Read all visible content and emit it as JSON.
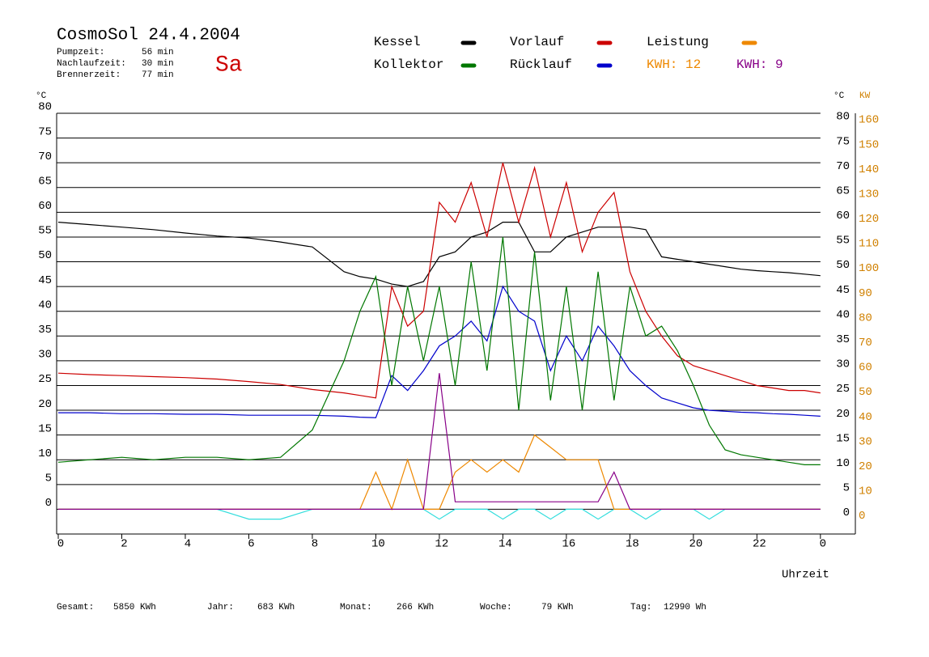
{
  "chart_data": {
    "type": "line",
    "title": "CosmoSol 24.4.2004",
    "weekday": "Sa",
    "info": [
      {
        "label": "Pumpzeit:",
        "value": "56 min"
      },
      {
        "label": "Nachlaufzeit:",
        "value": "30 min"
      },
      {
        "label": "Brennerzeit:",
        "value": "77 min"
      }
    ],
    "xlabel": "Uhrzeit",
    "ylabel": "°C",
    "y2label": "KW",
    "x": [
      0,
      1,
      2,
      3,
      4,
      5,
      6,
      7,
      8,
      9,
      9.5,
      10,
      10.5,
      11,
      11.5,
      12,
      12.5,
      13,
      13.5,
      14,
      14.5,
      15,
      15.5,
      16,
      16.5,
      17,
      17.5,
      18,
      18.5,
      19,
      19.5,
      20,
      20.5,
      21,
      21.5,
      22,
      22.5,
      23,
      23.5,
      24
    ],
    "xlim": [
      0,
      25.1
    ],
    "xticks": [
      0,
      2,
      4,
      6,
      8,
      10,
      12,
      14,
      16,
      18,
      20,
      22,
      {
        "value": 24,
        "label": "0"
      }
    ],
    "ylim": [
      -5,
      80
    ],
    "yticks": [
      0,
      5,
      10,
      15,
      20,
      25,
      30,
      35,
      40,
      45,
      50,
      55,
      60,
      65,
      70,
      75,
      80
    ],
    "y2lim": [
      -10,
      160
    ],
    "y2ticks": [
      0,
      10,
      20,
      30,
      40,
      50,
      60,
      70,
      80,
      90,
      100,
      110,
      120,
      130,
      140,
      150,
      160
    ],
    "grid": true,
    "series": [
      {
        "name": "Kessel",
        "color": "#000000",
        "values": [
          58,
          57.5,
          57,
          56.5,
          55.8,
          55.2,
          54.8,
          54,
          53,
          48,
          47,
          46.5,
          45.5,
          45,
          46,
          51,
          52,
          55,
          56,
          58,
          58,
          52,
          52,
          55,
          56,
          57,
          57,
          57,
          56.5,
          51,
          50.5,
          50,
          49.5,
          49,
          48.5,
          48.2,
          48,
          47.8,
          47.5,
          47.2
        ]
      },
      {
        "name": "Kollektor",
        "color": "#007700",
        "values": [
          9.5,
          10,
          10.5,
          10,
          10.5,
          10.5,
          10,
          10.5,
          16,
          30,
          40,
          47,
          25,
          45,
          30,
          45,
          25,
          50,
          28,
          55,
          20,
          52,
          22,
          45,
          20,
          48,
          22,
          45,
          35,
          37,
          32,
          25,
          17,
          12,
          11,
          10.5,
          10,
          9.5,
          9,
          9
        ]
      },
      {
        "name": "Vorlauf",
        "color": "#cc0000",
        "values": [
          27.5,
          27.2,
          27,
          26.8,
          26.6,
          26.3,
          25.8,
          25.2,
          24.2,
          23.5,
          23,
          22.5,
          45,
          37,
          40,
          62,
          58,
          66,
          55,
          70,
          58,
          69,
          55,
          66,
          52,
          60,
          64,
          48,
          40,
          35,
          31,
          29,
          28,
          27,
          26,
          25,
          24.5,
          24,
          24,
          23.5
        ]
      },
      {
        "name": "Rücklauf",
        "color": "#0000cc",
        "values": [
          19.5,
          19.5,
          19.3,
          19.3,
          19.2,
          19.2,
          19,
          19,
          19,
          18.8,
          18.6,
          18.5,
          27,
          24,
          28,
          33,
          35,
          38,
          34,
          45,
          40,
          38,
          28,
          35,
          30,
          37,
          33,
          28,
          25,
          22.5,
          21.5,
          20.5,
          20,
          19.8,
          19.6,
          19.5,
          19.3,
          19.2,
          19,
          18.8
        ]
      },
      {
        "name": "Leistung",
        "color": "#ee8800",
        "axis": "y2",
        "total_label": "KWH: 12",
        "values": [
          0,
          0,
          0,
          0,
          0,
          0,
          0,
          0,
          0,
          0,
          0,
          15,
          0,
          20,
          0,
          0,
          15,
          20,
          15,
          20,
          15,
          30,
          25,
          20,
          20,
          20,
          0,
          0,
          0,
          0,
          0,
          0,
          0,
          0,
          0,
          0,
          0,
          0,
          0,
          0
        ]
      },
      {
        "color": "#880088",
        "axis": "y2",
        "total_label": "KWH: 9",
        "values": [
          0,
          0,
          0,
          0,
          0,
          0,
          0,
          0,
          0,
          0,
          0,
          0,
          0,
          0,
          0,
          55,
          3,
          3,
          3,
          3,
          3,
          3,
          3,
          3,
          3,
          3,
          15,
          0,
          0,
          0,
          0,
          0,
          0,
          0,
          0,
          0,
          0,
          0,
          0,
          0
        ]
      },
      {
        "color": "#33dddd",
        "values": [
          0,
          0,
          0,
          0,
          0,
          0,
          -2,
          -2,
          0,
          0,
          0,
          0,
          0,
          0,
          0,
          -2,
          0,
          0,
          0,
          -2,
          0,
          0,
          -2,
          0,
          0,
          -2,
          0,
          0,
          -2,
          0,
          0,
          0,
          -2,
          0,
          0,
          0,
          0,
          0,
          0,
          0
        ]
      }
    ],
    "totals": [
      {
        "label": "Gesamt:",
        "value": "5850 KWh"
      },
      {
        "label": "Jahr:",
        "value": "683 KWh"
      },
      {
        "label": "Monat:",
        "value": "266 KWh"
      },
      {
        "label": "Woche:",
        "value": "79 KWh"
      },
      {
        "label": "Tag:",
        "value": "12990 Wh"
      }
    ]
  }
}
